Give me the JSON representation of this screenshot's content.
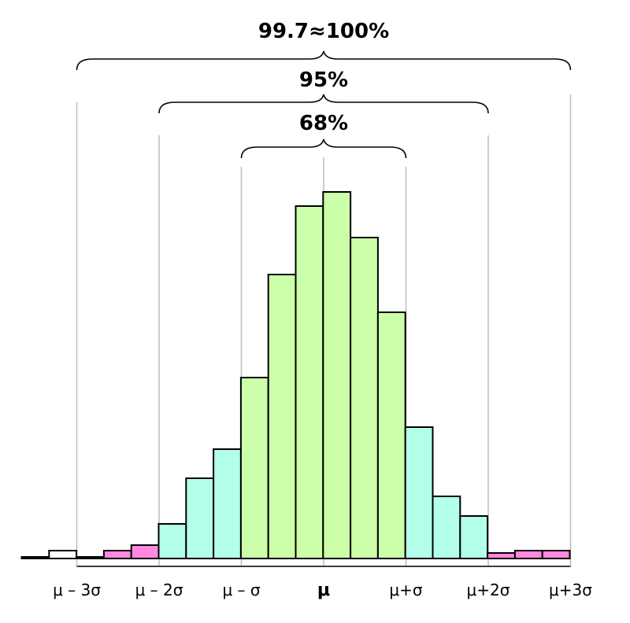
{
  "chart_data": {
    "type": "bar",
    "title": "",
    "bins": [
      {
        "value": 2,
        "color": "#ffffff"
      },
      {
        "value": 10,
        "color": "#ffffff"
      },
      {
        "value": 2,
        "color": "#ff88e0"
      },
      {
        "value": 10,
        "color": "#ff88e0"
      },
      {
        "value": 17,
        "color": "#ff88e0"
      },
      {
        "value": 44,
        "color": "#b3ffea"
      },
      {
        "value": 102,
        "color": "#b3ffea"
      },
      {
        "value": 139,
        "color": "#b3ffea"
      },
      {
        "value": 230,
        "color": "#ccffaa"
      },
      {
        "value": 361,
        "color": "#ccffaa"
      },
      {
        "value": 448,
        "color": "#ccffaa"
      },
      {
        "value": 466,
        "color": "#ccffaa"
      },
      {
        "value": 408,
        "color": "#ccffaa"
      },
      {
        "value": 313,
        "color": "#ccffaa"
      },
      {
        "value": 167,
        "color": "#b3ffea"
      },
      {
        "value": 79,
        "color": "#b3ffea"
      },
      {
        "value": 54,
        "color": "#b3ffea"
      },
      {
        "value": 7,
        "color": "#ff88e0"
      },
      {
        "value": 10,
        "color": "#ff88e0"
      },
      {
        "value": 10,
        "color": "#ff88e0"
      }
    ],
    "tick_labels": [
      "μ – 3σ",
      "μ – 2σ",
      "μ – σ",
      "μ",
      "μ+σ",
      "μ+2σ",
      "μ+3σ"
    ],
    "tick_positions_sigma": [
      -3,
      -2,
      -1,
      0,
      1,
      2,
      3
    ],
    "bin_width_sigma": 0.333,
    "bins_start_sigma": -3.67,
    "intervals": [
      {
        "label": "99.7≈100%",
        "from_sigma": -3,
        "to_sigma": 3
      },
      {
        "label": "95%",
        "from_sigma": -2,
        "to_sigma": 2
      },
      {
        "label": "68%",
        "from_sigma": -1,
        "to_sigma": 1
      }
    ],
    "ylim": [
      0,
      470
    ],
    "grid": false,
    "legend": "none"
  }
}
